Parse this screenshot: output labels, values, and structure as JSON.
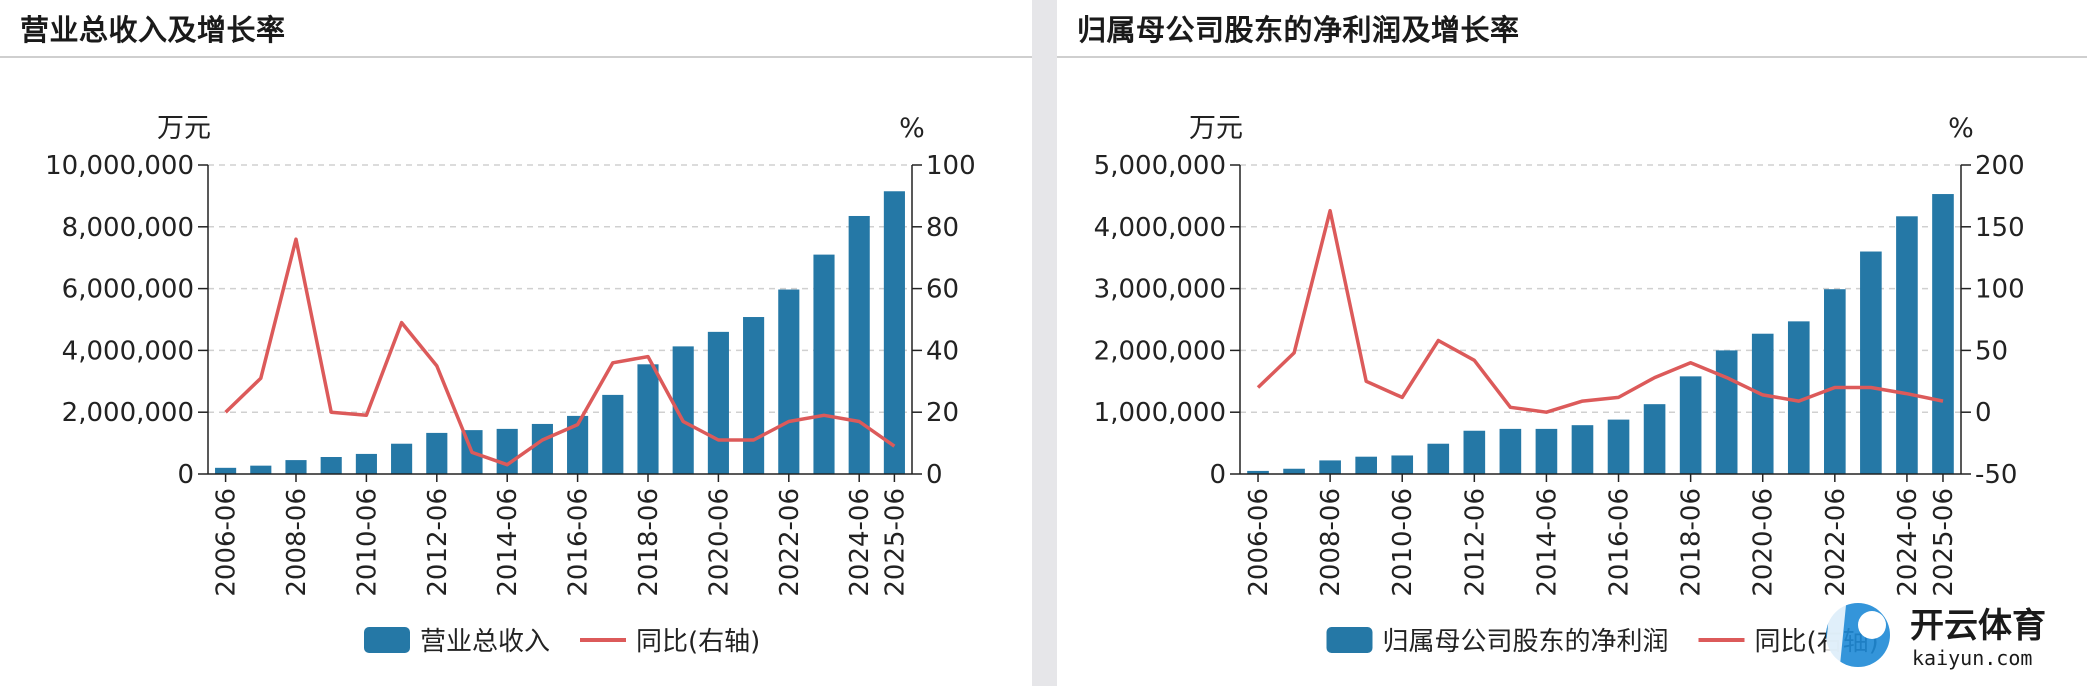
{
  "colors": {
    "bar": "#2578a6",
    "line": "#dc5a5a",
    "grid": "#d0d0d0",
    "axis": "#222222"
  },
  "charts": [
    {
      "panel_title": "营业总收入及增长率",
      "left_unit": "万元",
      "right_unit": "%",
      "legend_bar": "营业总收入",
      "legend_line": "同比(右轴)",
      "left_ticks": [
        "0",
        "2,000,000",
        "4,000,000",
        "6,000,000",
        "8,000,000",
        "10,000,000"
      ],
      "right_ticks": [
        "0",
        "20",
        "40",
        "60",
        "80",
        "100"
      ],
      "x_labels": [
        "2006-06",
        "2008-06",
        "2010-06",
        "2012-06",
        "2014-06",
        "2016-06",
        "2018-06",
        "2020-06",
        "2022-06",
        "2024-06",
        "2025-06"
      ]
    },
    {
      "panel_title": "归属母公司股东的净利润及增长率",
      "left_unit": "万元",
      "right_unit": "%",
      "legend_bar": "归属母公司股东的净利润",
      "legend_line": "同比(右轴)",
      "left_ticks": [
        "0",
        "1,000,000",
        "2,000,000",
        "3,000,000",
        "4,000,000",
        "5,000,000"
      ],
      "right_ticks": [
        "-50",
        "0",
        "50",
        "100",
        "150",
        "200"
      ],
      "x_labels": [
        "2006-06",
        "2008-06",
        "2010-06",
        "2012-06",
        "2014-06",
        "2016-06",
        "2018-06",
        "2020-06",
        "2022-06",
        "2024-06",
        "2025-06"
      ]
    }
  ],
  "chart_data": [
    {
      "type": "bar",
      "title": "营业总收入及增长率",
      "categories": [
        "2006-06",
        "2007-06",
        "2008-06",
        "2009-06",
        "2010-06",
        "2011-06",
        "2012-06",
        "2013-06",
        "2014-06",
        "2015-06",
        "2016-06",
        "2017-06",
        "2018-06",
        "2019-06",
        "2020-06",
        "2021-06",
        "2022-06",
        "2023-06",
        "2024-06",
        "2025-06"
      ],
      "series": [
        {
          "name": "营业总收入",
          "kind": "bar",
          "axis": "left",
          "values": [
            200000,
            270000,
            450000,
            550000,
            650000,
            980000,
            1330000,
            1420000,
            1460000,
            1620000,
            1880000,
            2560000,
            3550000,
            4130000,
            4600000,
            5080000,
            5970000,
            7100000,
            8350000,
            9150000
          ]
        },
        {
          "name": "同比(右轴)",
          "kind": "line",
          "axis": "right",
          "values": [
            20,
            31,
            76,
            20,
            19,
            49,
            35,
            7,
            3,
            11,
            16,
            36,
            38,
            17,
            11,
            11,
            17,
            19,
            17,
            9
          ]
        }
      ],
      "ylim": [
        0,
        10000000
      ],
      "y2lim": [
        0,
        100
      ],
      "ylabel": "万元",
      "y2label": "%"
    },
    {
      "type": "bar",
      "title": "归属母公司股东的净利润及增长率",
      "categories": [
        "2006-06",
        "2007-06",
        "2008-06",
        "2009-06",
        "2010-06",
        "2011-06",
        "2012-06",
        "2013-06",
        "2014-06",
        "2015-06",
        "2016-06",
        "2017-06",
        "2018-06",
        "2019-06",
        "2020-06",
        "2021-06",
        "2022-06",
        "2023-06",
        "2024-06",
        "2025-06"
      ],
      "series": [
        {
          "name": "归属母公司股东的净利润",
          "kind": "bar",
          "axis": "left",
          "values": [
            50000,
            85000,
            220000,
            280000,
            300000,
            490000,
            700000,
            730000,
            730000,
            790000,
            880000,
            1130000,
            1580000,
            2000000,
            2270000,
            2470000,
            2990000,
            3600000,
            4170000,
            4530000
          ]
        },
        {
          "name": "同比(右轴)",
          "kind": "line",
          "axis": "right",
          "values": [
            20,
            48,
            163,
            25,
            12,
            58,
            42,
            4,
            0,
            9,
            12,
            28,
            40,
            28,
            14,
            9,
            20,
            20,
            15,
            9
          ]
        }
      ],
      "ylim": [
        0,
        5000000
      ],
      "y2lim": [
        -50,
        200
      ],
      "ylabel": "万元",
      "y2label": "%"
    }
  ],
  "brand": {
    "name": "开云体育",
    "url_text": "kaiyun.com"
  }
}
